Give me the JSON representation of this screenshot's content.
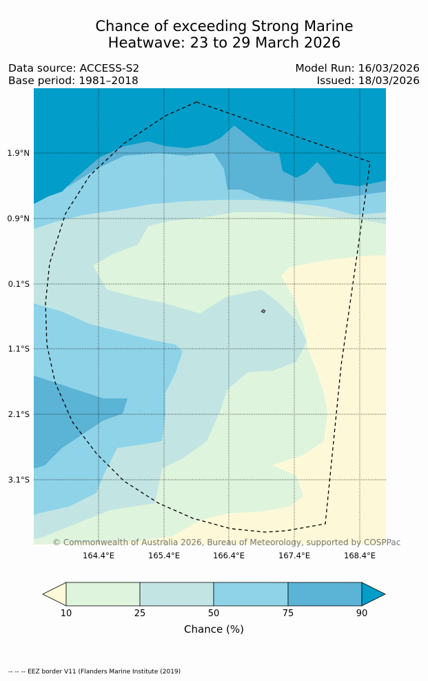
{
  "title_line1": "Chance of exceeding Strong Marine",
  "title_line2": "Heatwave: 23 to 29 March 2026",
  "data_source": "Data source: ACCESS-S2",
  "base_period": "Base period: 1981–2018",
  "model_run": "Model Run: 16/03/2026",
  "issued": "Issued: 18/03/2026",
  "copyright": "© Commonwealth of Australia 2026, Bureau of Meteorology, supported by COSPPac",
  "lon_ticks": [
    "164.4°E",
    "165.4°E",
    "166.4°E",
    "167.4°E",
    "168.4°E"
  ],
  "lat_ticks": [
    "1.9°N",
    "0.9°N",
    "0.1°S",
    "1.1°S",
    "2.1°S",
    "3.1°S"
  ],
  "colorbar": {
    "ticks": [
      "10",
      "25",
      "50",
      "75",
      "90"
    ],
    "label": "Chance (%)",
    "colors": [
      "#fdf9d8",
      "#dff4dc",
      "#c2e5e3",
      "#8fd3e8",
      "#5bb3d5",
      "#029dc8"
    ]
  },
  "footnote": "-- -- -- EEZ border V11 (Flanders Marine Institute (2019)"
}
